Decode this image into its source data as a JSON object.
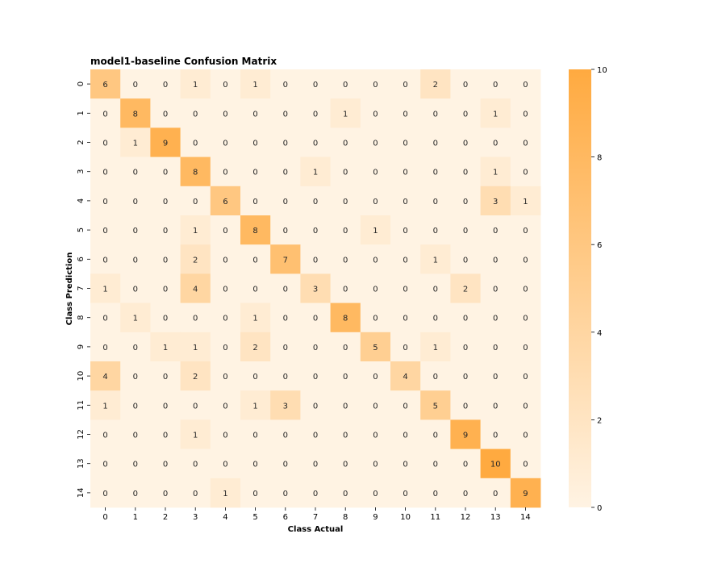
{
  "chart_data": {
    "type": "heatmap",
    "title": "model1-baseline Confusion Matrix",
    "xlabel": "Class Actual",
    "ylabel": "Class Prediction",
    "x_categories": [
      "0",
      "1",
      "2",
      "3",
      "4",
      "5",
      "6",
      "7",
      "8",
      "9",
      "10",
      "11",
      "12",
      "13",
      "14"
    ],
    "y_categories": [
      "0",
      "1",
      "2",
      "3",
      "4",
      "5",
      "6",
      "7",
      "8",
      "9",
      "10",
      "11",
      "12",
      "13",
      "14"
    ],
    "values": [
      [
        6,
        0,
        0,
        1,
        0,
        1,
        0,
        0,
        0,
        0,
        0,
        2,
        0,
        0,
        0
      ],
      [
        0,
        8,
        0,
        0,
        0,
        0,
        0,
        0,
        1,
        0,
        0,
        0,
        0,
        1,
        0
      ],
      [
        0,
        1,
        9,
        0,
        0,
        0,
        0,
        0,
        0,
        0,
        0,
        0,
        0,
        0,
        0
      ],
      [
        0,
        0,
        0,
        8,
        0,
        0,
        0,
        1,
        0,
        0,
        0,
        0,
        0,
        1,
        0
      ],
      [
        0,
        0,
        0,
        0,
        6,
        0,
        0,
        0,
        0,
        0,
        0,
        0,
        0,
        3,
        1
      ],
      [
        0,
        0,
        0,
        1,
        0,
        8,
        0,
        0,
        0,
        1,
        0,
        0,
        0,
        0,
        0
      ],
      [
        0,
        0,
        0,
        2,
        0,
        0,
        7,
        0,
        0,
        0,
        0,
        1,
        0,
        0,
        0
      ],
      [
        1,
        0,
        0,
        4,
        0,
        0,
        0,
        3,
        0,
        0,
        0,
        0,
        2,
        0,
        0
      ],
      [
        0,
        1,
        0,
        0,
        0,
        1,
        0,
        0,
        8,
        0,
        0,
        0,
        0,
        0,
        0
      ],
      [
        0,
        0,
        1,
        1,
        0,
        2,
        0,
        0,
        0,
        5,
        0,
        1,
        0,
        0,
        0
      ],
      [
        4,
        0,
        0,
        2,
        0,
        0,
        0,
        0,
        0,
        0,
        4,
        0,
        0,
        0,
        0
      ],
      [
        1,
        0,
        0,
        0,
        0,
        1,
        3,
        0,
        0,
        0,
        0,
        5,
        0,
        0,
        0
      ],
      [
        0,
        0,
        0,
        1,
        0,
        0,
        0,
        0,
        0,
        0,
        0,
        0,
        9,
        0,
        0
      ],
      [
        0,
        0,
        0,
        0,
        0,
        0,
        0,
        0,
        0,
        0,
        0,
        0,
        0,
        10,
        0
      ],
      [
        0,
        0,
        0,
        0,
        1,
        0,
        0,
        0,
        0,
        0,
        0,
        0,
        0,
        0,
        9
      ]
    ],
    "colorbar": {
      "range": [
        0,
        10
      ],
      "ticks": [
        "0",
        "2",
        "4",
        "6",
        "8",
        "10"
      ],
      "color_low": "#fff3e3",
      "color_high": "#ffaa40"
    },
    "cell_label_color": "#262626",
    "grid": false
  }
}
